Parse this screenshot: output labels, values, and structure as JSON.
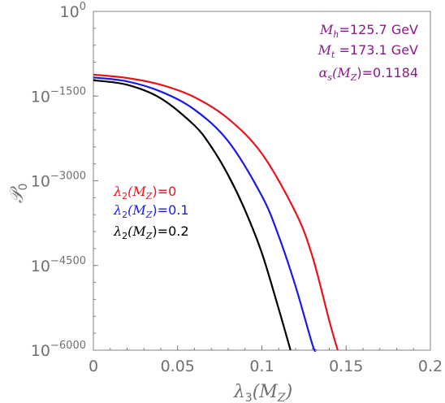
{
  "chart_data": {
    "type": "line",
    "title": "",
    "xlabel": {
      "base": "λ",
      "sub": "3",
      "paren": "(M",
      "psub": "Z",
      "close": ")"
    },
    "ylabel": {
      "base": "𝒫",
      "sub": "0"
    },
    "x_log": false,
    "y_log": true,
    "xlim": [
      0,
      0.2
    ],
    "ylim_exponent": [
      -6000,
      0
    ],
    "x_ticks": [
      {
        "value": 0,
        "label": "0"
      },
      {
        "value": 0.05,
        "label": "0.05"
      },
      {
        "value": 0.1,
        "label": "0.1"
      },
      {
        "value": 0.15,
        "label": "0.15"
      },
      {
        "value": 0.2,
        "label": "0.2"
      }
    ],
    "y_ticks": [
      {
        "exp": 0,
        "base": "10",
        "sup": "0"
      },
      {
        "exp": -1500,
        "base": "10",
        "sup": "−1500"
      },
      {
        "exp": -3000,
        "base": "10",
        "sup": "−3000"
      },
      {
        "exp": -4500,
        "base": "10",
        "sup": "−4500"
      },
      {
        "exp": -6000,
        "base": "10",
        "sup": "−6000"
      }
    ],
    "series": [
      {
        "color": "#e8141c",
        "label": {
          "base": "λ",
          "sub": "2",
          "paren": "(M",
          "psub": "Z",
          "rest": ")=0"
        },
        "x": [
          0,
          0.02,
          0.04,
          0.06,
          0.08,
          0.1,
          0.12,
          0.13,
          0.14,
          0.145
        ],
        "y_exp": [
          -1120,
          -1180,
          -1300,
          -1520,
          -1900,
          -2520,
          -3560,
          -4340,
          -5480,
          -6000
        ]
      },
      {
        "color": "#1a1ae6",
        "label": {
          "base": "λ",
          "sub": "2",
          "paren": "(M",
          "psub": "Z",
          "rest": ")=0.1"
        },
        "x": [
          0,
          0.02,
          0.04,
          0.06,
          0.08,
          0.1,
          0.11,
          0.12,
          0.13,
          0.132
        ],
        "y_exp": [
          -1170,
          -1240,
          -1420,
          -1740,
          -2300,
          -3270,
          -3980,
          -4870,
          -5900,
          -6000
        ]
      },
      {
        "color": "#000000",
        "label": {
          "base": "λ",
          "sub": "2",
          "paren": "(M",
          "psub": "Z",
          "rest": ")=0.2"
        },
        "x": [
          0,
          0.02,
          0.04,
          0.06,
          0.07,
          0.08,
          0.09,
          0.1,
          0.11,
          0.117
        ],
        "y_exp": [
          -1220,
          -1300,
          -1540,
          -2020,
          -2400,
          -2900,
          -3520,
          -4280,
          -5270,
          -6000
        ]
      }
    ],
    "parameters": {
      "color": "#8b1a8b",
      "items": [
        {
          "sym": "M",
          "sub": "h",
          "text": "=125.7 GeV"
        },
        {
          "sym": "M",
          "sub": "t",
          "text": " =173.1 GeV"
        },
        {
          "sym": "α",
          "sub": "s",
          "paren": "(M",
          "psub": "Z",
          "text": ")=0.1184"
        }
      ]
    },
    "grid": false,
    "legend_position": "center-left"
  }
}
